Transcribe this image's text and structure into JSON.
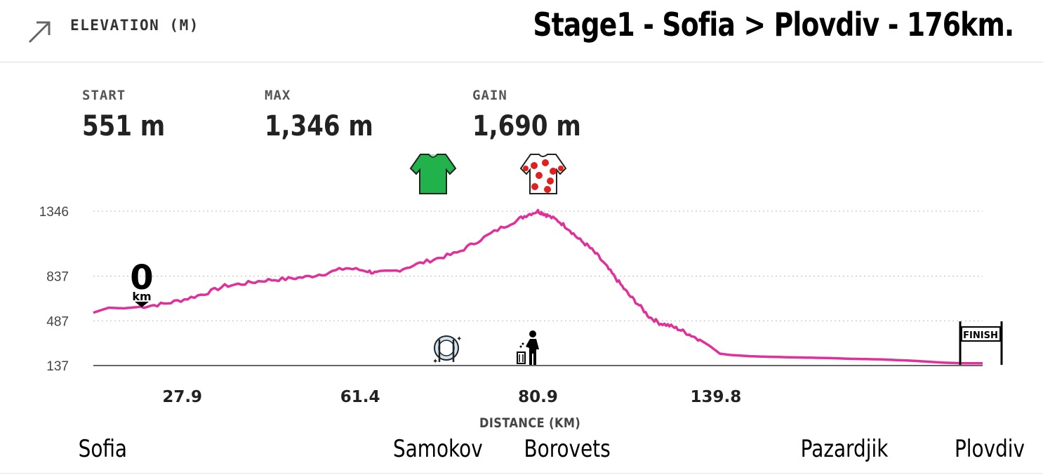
{
  "header": {
    "elevation_label": "ELEVATION (M)",
    "stage_title": "Stage1 - Sofia > Plovdiv - 176km.",
    "expand_icon": "expand-arrow-icon"
  },
  "stats": {
    "start": {
      "label": "START",
      "value": "551 m"
    },
    "max": {
      "label": "MAX",
      "value": "1,346 m"
    },
    "gain": {
      "label": "GAIN",
      "value": "1,690 m"
    }
  },
  "markers": {
    "zero_km": {
      "number": "0",
      "unit": "km"
    },
    "finish": "FINISH"
  },
  "colors": {
    "profile": "#e0309a",
    "green_jersey": "#21b24b",
    "polka_dot": "#e01f1f",
    "grid": "#bbbbbb",
    "axis": "#333333"
  },
  "chart_data": {
    "type": "line",
    "title": "ELEVATION (M)",
    "xlabel": "DISTANCE (KM)",
    "ylabel": "",
    "ylim": [
      137,
      1346
    ],
    "y_ticks": [
      "1346",
      "837",
      "487",
      "137"
    ],
    "y_tick_values": [
      1346,
      837,
      487,
      137
    ],
    "x_tick_labels": [
      "27.9",
      "61.4",
      "80.9",
      "139.8"
    ],
    "x_tick_positions_km": [
      17.6,
      52.8,
      88.0,
      123.2
    ],
    "xlim": [
      0,
      176
    ],
    "series": [
      {
        "name": "Elevation",
        "x": [
          0,
          3,
          6,
          10,
          14,
          18,
          22,
          26,
          30,
          34,
          38,
          42,
          46,
          50,
          54,
          56,
          60,
          64,
          68,
          72,
          76,
          80,
          84,
          86,
          88,
          89,
          90,
          92,
          94,
          96,
          98,
          100,
          102,
          104,
          106,
          108,
          110,
          112,
          114,
          116,
          118,
          120,
          122,
          124,
          126,
          130,
          134,
          140,
          146,
          150,
          156,
          162,
          168,
          172,
          176
        ],
        "values": [
          551,
          590,
          585,
          600,
          620,
          655,
          700,
          760,
          780,
          805,
          815,
          830,
          860,
          900,
          880,
          860,
          880,
          930,
          975,
          1020,
          1110,
          1200,
          1280,
          1320,
          1346,
          1330,
          1310,
          1270,
          1210,
          1130,
          1070,
          990,
          890,
          790,
          690,
          610,
          520,
          470,
          450,
          420,
          380,
          340,
          290,
          230,
          220,
          210,
          205,
          200,
          195,
          190,
          185,
          175,
          160,
          155,
          155
        ]
      }
    ],
    "annotations": [
      {
        "type": "green-jersey",
        "x_km": 67.4
      },
      {
        "type": "polka-dot-jersey",
        "x_km": 89.4
      },
      {
        "type": "feed-zone",
        "x_km": 69.6
      },
      {
        "type": "litter-zone",
        "x_km": 86.2
      },
      {
        "type": "km-zero",
        "x_km": 9.5
      },
      {
        "type": "finish",
        "x_km": 176
      }
    ],
    "towns": [
      {
        "name": "Sofia",
        "x_km": 0
      },
      {
        "name": "Samokov",
        "x_km": 60.8
      },
      {
        "name": "Borovets",
        "x_km": 91.2
      },
      {
        "name": "Pazardjik",
        "x_km": 150.1
      },
      {
        "name": "Plovdiv",
        "x_km": 176
      }
    ]
  }
}
